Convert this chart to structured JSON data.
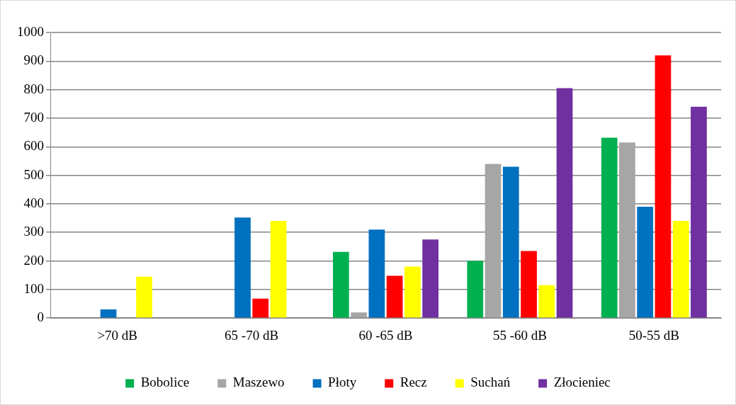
{
  "chart_data": {
    "type": "bar",
    "categories": [
      ">70 dB",
      "65 -70 dB",
      "60 -65 dB",
      "55 -60 dB",
      "50-55 dB"
    ],
    "series": [
      {
        "name": "Bobolice",
        "color": "#00b050",
        "values": [
          null,
          null,
          232,
          200,
          632
        ]
      },
      {
        "name": "Maszewo",
        "color": "#a6a6a6",
        "values": [
          null,
          null,
          20,
          540,
          615
        ]
      },
      {
        "name": "Płoty",
        "color": "#0070c0",
        "values": [
          30,
          352,
          310,
          530,
          390
        ]
      },
      {
        "name": "Recz",
        "color": "#ff0000",
        "values": [
          null,
          68,
          148,
          235,
          920
        ]
      },
      {
        "name": "Suchań",
        "color": "#ffff00",
        "values": [
          145,
          340,
          180,
          115,
          340
        ]
      },
      {
        "name": "Złocieniec",
        "color": "#7030a0",
        "values": [
          null,
          null,
          275,
          805,
          740
        ]
      }
    ],
    "ylim": [
      0,
      1000
    ],
    "yticks": [
      0,
      100,
      200,
      300,
      400,
      500,
      600,
      700,
      800,
      900,
      1000
    ],
    "grid": "y",
    "legend": "bottom"
  }
}
